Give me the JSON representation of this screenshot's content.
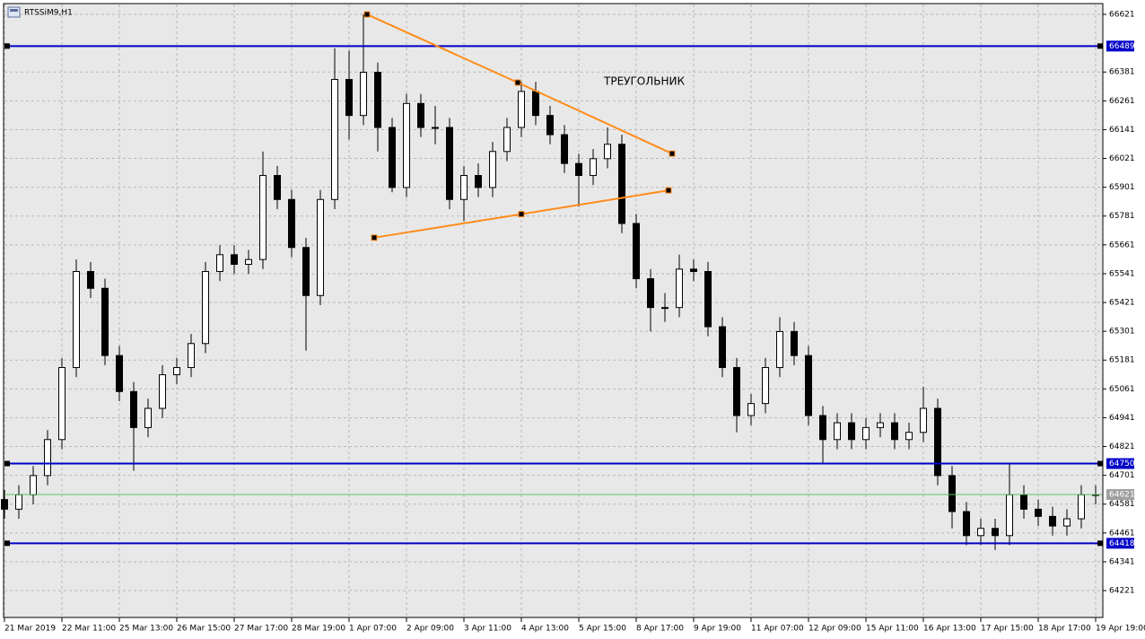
{
  "chart_data": {
    "type": "candlestick",
    "title": "RTSSiM9,H1",
    "annotation": "ТРЕУГОЛЬНИК",
    "annotation_color": "#ff0000",
    "x": [
      0,
      4,
      8,
      12,
      16,
      20,
      24,
      28,
      32,
      36,
      40,
      44,
      48,
      52,
      56,
      60,
      64,
      68,
      72,
      76,
      80,
      84,
      88,
      92,
      96,
      100,
      104,
      108,
      112,
      116,
      120,
      124,
      128,
      132,
      136,
      140,
      144,
      148,
      152,
      156,
      160,
      164,
      168,
      172,
      176,
      180,
      184,
      188,
      192,
      196,
      200,
      204,
      208,
      212,
      216,
      220,
      224,
      228,
      232,
      236,
      240,
      244,
      248,
      252,
      256,
      260,
      264,
      268,
      272,
      276,
      280,
      284,
      288,
      292,
      296,
      300,
      304
    ],
    "open": [
      64600,
      64560,
      64620,
      64700,
      64850,
      65150,
      65550,
      65480,
      65200,
      65050,
      64900,
      64980,
      65120,
      65150,
      65250,
      65550,
      65620,
      65580,
      65600,
      65950,
      65850,
      65650,
      65450,
      65850,
      66350,
      66200,
      66380,
      66150,
      65900,
      66250,
      66150,
      66150,
      65850,
      65950,
      65900,
      66050,
      66150,
      66300,
      66200,
      66120,
      66000,
      65950,
      66020,
      66080,
      65750,
      65520,
      65400,
      65400,
      65560,
      65550,
      65320,
      65150,
      64950,
      65000,
      65150,
      65300,
      65200,
      64950,
      64850,
      64920,
      64850,
      64900,
      64920,
      64850,
      64880,
      64980,
      64700,
      64550,
      64450,
      64480,
      64450,
      64620,
      64560,
      64530,
      64490,
      64520,
      64620
    ],
    "high": [
      64640,
      64660,
      64740,
      64890,
      65190,
      65600,
      65590,
      65520,
      65240,
      65090,
      65020,
      65160,
      65190,
      65290,
      65590,
      65660,
      65660,
      65640,
      66050,
      65990,
      65890,
      65690,
      65890,
      66480,
      66470,
      66621,
      66420,
      66190,
      66290,
      66290,
      66240,
      66190,
      65990,
      66000,
      66090,
      66190,
      66340,
      66340,
      66240,
      66160,
      66040,
      66060,
      66150,
      66120,
      65790,
      65560,
      65460,
      65620,
      65600,
      65590,
      65360,
      65190,
      65040,
      65190,
      65360,
      65340,
      65240,
      64990,
      64960,
      64960,
      64940,
      64960,
      64960,
      64920,
      65070,
      65020,
      64740,
      64590,
      64520,
      64520,
      64750,
      64660,
      64600,
      64570,
      64560,
      64660,
      64660
    ],
    "low": [
      64520,
      64520,
      64580,
      64660,
      64810,
      65110,
      65440,
      65160,
      65010,
      64720,
      64860,
      64940,
      65080,
      65110,
      65210,
      65510,
      65540,
      65540,
      65560,
      65810,
      65610,
      65220,
      65410,
      65810,
      66100,
      66160,
      66050,
      65880,
      65860,
      66110,
      66080,
      65810,
      65760,
      65860,
      65860,
      66010,
      66110,
      66160,
      66080,
      65960,
      65820,
      65910,
      65980,
      65710,
      65480,
      65300,
      65340,
      65360,
      65510,
      65280,
      65110,
      64880,
      64910,
      64960,
      65110,
      65160,
      64910,
      64750,
      64810,
      64810,
      64810,
      64860,
      64810,
      64810,
      64840,
      64660,
      64480,
      64410,
      64410,
      64390,
      64410,
      64520,
      64490,
      64450,
      64450,
      64480,
      64580
    ],
    "close": [
      64560,
      64620,
      64700,
      64850,
      65150,
      65550,
      65480,
      65200,
      65050,
      64900,
      64980,
      65120,
      65150,
      65250,
      65550,
      65620,
      65580,
      65600,
      65950,
      65850,
      65650,
      65450,
      65850,
      66350,
      66200,
      66380,
      66150,
      65900,
      66250,
      66150,
      66150,
      65850,
      65950,
      65900,
      66050,
      66150,
      66300,
      66200,
      66120,
      66000,
      65950,
      66020,
      66080,
      65750,
      65520,
      65400,
      65400,
      65560,
      65550,
      65320,
      65150,
      64950,
      65000,
      65150,
      65300,
      65200,
      64950,
      64850,
      64920,
      64850,
      64900,
      64920,
      64850,
      64880,
      64980,
      64700,
      64550,
      64450,
      64480,
      64450,
      64620,
      64560,
      64530,
      64490,
      64520,
      64620,
      64621
    ],
    "up_color": "#ffffff",
    "down_color": "#000000",
    "xlim": [
      0,
      306
    ],
    "xticks": [
      {
        "value": 0,
        "label": "21 Mar 2019"
      },
      {
        "value": 16,
        "label": "22 Mar 11:00"
      },
      {
        "value": 32,
        "label": "25 Mar 13:00"
      },
      {
        "value": 48,
        "label": "26 Mar 15:00"
      },
      {
        "value": 64,
        "label": "27 Mar 17:00"
      },
      {
        "value": 80,
        "label": "28 Mar 19:00"
      },
      {
        "value": 96,
        "label": "1 Apr 07:00"
      },
      {
        "value": 112,
        "label": "2 Apr 09:00"
      },
      {
        "value": 128,
        "label": "3 Apr 11:00"
      },
      {
        "value": 144,
        "label": "4 Apr 13:00"
      },
      {
        "value": 160,
        "label": "5 Apr 15:00"
      },
      {
        "value": 176,
        "label": "8 Apr 17:00"
      },
      {
        "value": 192,
        "label": "9 Apr 19:00"
      },
      {
        "value": 208,
        "label": "11 Apr 07:00"
      },
      {
        "value": 224,
        "label": "12 Apr 09:00"
      },
      {
        "value": 240,
        "label": "15 Apr 11:00"
      },
      {
        "value": 256,
        "label": "16 Apr 13:00"
      },
      {
        "value": 272,
        "label": "17 Apr 15:00"
      },
      {
        "value": 288,
        "label": "18 Apr 17:00"
      },
      {
        "value": 304,
        "label": "19 Apr 19:00"
      }
    ],
    "ylim": [
      64109,
      66666
    ],
    "yticks": [
      66621,
      66381,
      66261,
      66141,
      66021,
      65901,
      65781,
      65661,
      65541,
      65421,
      65301,
      65181,
      65061,
      64941,
      64821,
      64701,
      64581,
      64461,
      64341,
      64221
    ],
    "grid": true,
    "hlines": [
      {
        "value": 66489,
        "color": "#0000c8"
      },
      {
        "value": 64750,
        "color": "#0000c8"
      },
      {
        "value": 64418,
        "color": "#0000c8"
      }
    ],
    "price_line": {
      "value": 64621,
      "color": "#5fbf5f"
    },
    "trendlines": [
      {
        "color": "#ff8c1a",
        "x": [
          101,
          143,
          186
        ],
        "y": [
          66621,
          66337,
          66041
        ]
      },
      {
        "color": "#ff8c1a",
        "x": [
          103,
          144,
          185
        ],
        "y": [
          65691,
          65789,
          65888
        ]
      }
    ]
  }
}
